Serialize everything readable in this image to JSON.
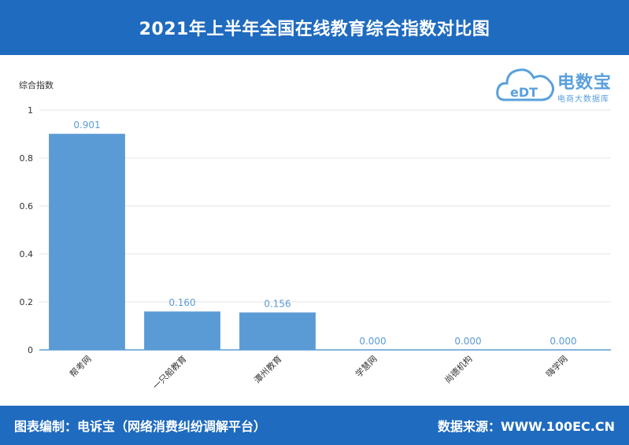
{
  "header": {
    "title": "2021年上半年全国在线教育综合指数对比图"
  },
  "logo": {
    "brand": "电数宝",
    "tagline": "电商大数据库",
    "mark_text": "eDT",
    "color": "#5aa0dc"
  },
  "footer": {
    "credit": "图表编制：电诉宝（网络消费纠纷调解平台）",
    "source": "数据来源：WWW.100EC.CN"
  },
  "colors": {
    "bar": "#5b9bd5",
    "header_bg": "#1f6bbf",
    "axis": "#5b9bd5",
    "label": "#5b9bd5"
  },
  "chart_data": {
    "type": "bar",
    "title": "2021年上半年全国在线教育综合指数对比图",
    "ylabel": "综合指数",
    "xlabel": "",
    "categories": [
      "帮考网",
      "一只船教育",
      "潭州教育",
      "学慧网",
      "尚德机构",
      "嗨学网"
    ],
    "values": [
      0.901,
      0.16,
      0.156,
      0.0,
      0.0,
      0.0
    ],
    "value_labels": [
      "0.901",
      "0.160",
      "0.156",
      "0.000",
      "0.000",
      "0.000"
    ],
    "ylim": [
      0,
      1
    ],
    "yticks": [
      0,
      0.2,
      0.4,
      0.6,
      0.8,
      1
    ],
    "ytick_labels": [
      "0",
      "0.2",
      "0.4",
      "0.6",
      "0.8",
      "1"
    ],
    "grid": true,
    "legend": "none"
  }
}
